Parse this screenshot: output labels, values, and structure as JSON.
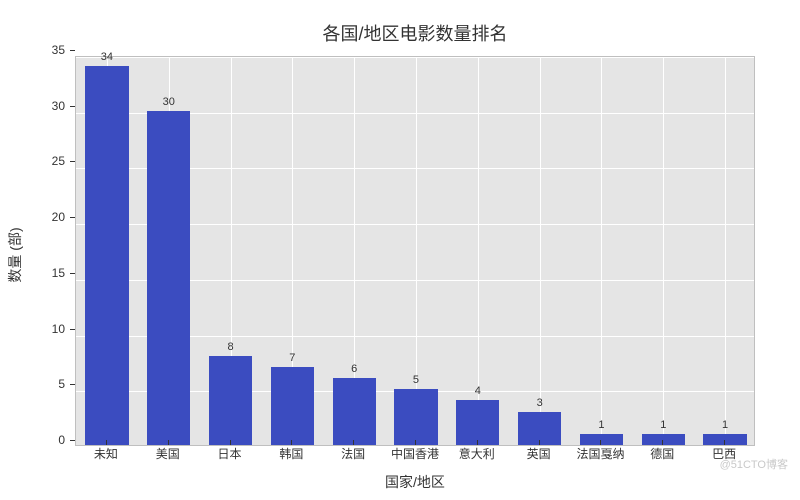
{
  "chart": {
    "type": "bar",
    "title": "各国/地区电影数量排名",
    "title_fontsize": 18,
    "title_color": "#333333",
    "categories": [
      "未知",
      "美国",
      "日本",
      "韩国",
      "法国",
      "中国香港",
      "意大利",
      "英国",
      "法国戛纳",
      "德国",
      "巴西"
    ],
    "values": [
      34,
      30,
      8,
      7,
      6,
      5,
      4,
      3,
      1,
      1,
      1
    ],
    "bar_color": "#3b4cc0",
    "background_color": "#e5e5e5",
    "grid_color": "#ffffff",
    "ylabel": "数量 (部)",
    "xlabel": "国家/地区",
    "label_fontsize": 14,
    "tick_fontsize": 12,
    "value_label_fontsize": 11,
    "ylim": [
      0,
      35
    ],
    "ytick_step": 5,
    "yticks": [
      0,
      5,
      10,
      15,
      20,
      25,
      30,
      35
    ],
    "bar_width": 0.7,
    "border_color": "#bfbfbf"
  },
  "watermark": "@51CTO博客"
}
